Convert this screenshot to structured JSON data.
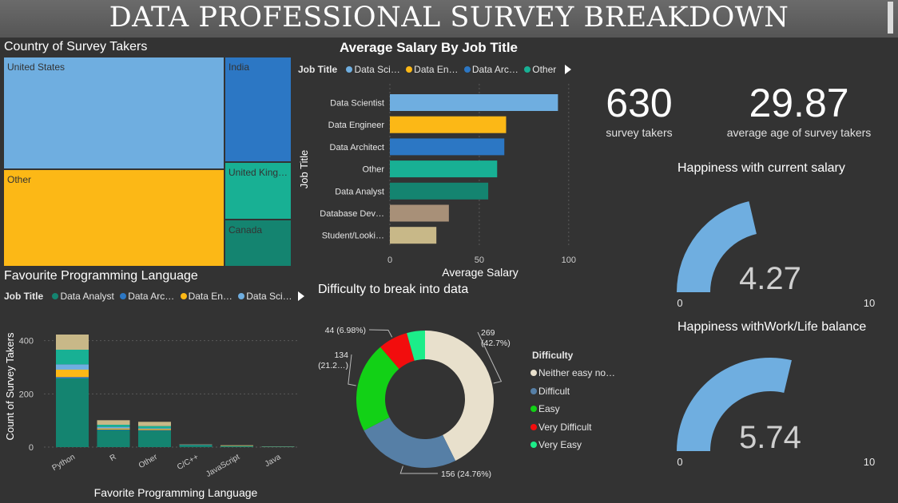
{
  "header": {
    "title": "DATA PROFESSIONAL SURVEY BREAKDOWN"
  },
  "treemap": {
    "title": "Country of Survey Takers",
    "items": [
      {
        "label": "United States",
        "color": "#6FAEE0"
      },
      {
        "label": "India",
        "color": "#2C77C4"
      },
      {
        "label": "United King…",
        "color": "#18B094"
      },
      {
        "label": "Other",
        "color": "#FCB816"
      },
      {
        "label": "Canada",
        "color": "#148470"
      }
    ]
  },
  "salary": {
    "title": "Average Salary By Job Title",
    "legend_title": "Job Title",
    "legend": [
      {
        "label": "Data Sci…",
        "color": "#6FAEE0"
      },
      {
        "label": "Data En…",
        "color": "#FCB816"
      },
      {
        "label": "Data Arc…",
        "color": "#2C77C4"
      },
      {
        "label": "Other",
        "color": "#18B094"
      }
    ],
    "ylabel": "Job Title",
    "xlabel": "Average Salary"
  },
  "kpis": [
    {
      "value": "630",
      "label": "survey takers"
    },
    {
      "value": "29.87",
      "label": "average age of survey takers"
    }
  ],
  "gauges": [
    {
      "title": "Happiness with current salary",
      "value": 4.27,
      "display": "4.27",
      "min": "0",
      "max": "10",
      "color": "#6FAEE0"
    },
    {
      "title": "Happiness withWork/Life balance",
      "value": 5.74,
      "display": "5.74",
      "min": "0",
      "max": "10",
      "color": "#6FAEE0"
    }
  ],
  "languages": {
    "title": "Favourite Programming Language",
    "legend_title": "Job Title",
    "legend": [
      {
        "label": "Data Analyst",
        "color": "#148470"
      },
      {
        "label": "Data Arc…",
        "color": "#2C77C4"
      },
      {
        "label": "Data En…",
        "color": "#FCB816"
      },
      {
        "label": "Data Sci…",
        "color": "#6FAEE0"
      }
    ]
  },
  "donut": {
    "title": "Difficulty to break into data",
    "legend_title": "Difficulty",
    "legend": [
      {
        "label": "Neither easy no…",
        "color": "#E8E0CC"
      },
      {
        "label": "Difficult",
        "color": "#567FA6"
      },
      {
        "label": "Easy",
        "color": "#12D116"
      },
      {
        "label": "Very Difficult",
        "color": "#F20D0D"
      },
      {
        "label": "Very Easy",
        "color": "#1CED89"
      }
    ]
  },
  "chart_data": [
    {
      "type": "bar",
      "orientation": "horizontal",
      "title": "Average Salary By Job Title",
      "xlabel": "Average Salary",
      "ylabel": "Job Title",
      "categories": [
        "Data Scientist",
        "Data Engineer",
        "Data Architect",
        "Other",
        "Data Analyst",
        "Database Dev…",
        "Student/Looki…"
      ],
      "values": [
        94,
        65,
        64,
        60,
        55,
        33,
        26
      ],
      "colors": [
        "#6FAEE0",
        "#FCB816",
        "#2C77C4",
        "#18B094",
        "#148470",
        "#A89078",
        "#C8B888"
      ],
      "xlim": [
        0,
        105
      ],
      "xticks": [
        "0",
        "50",
        "100"
      ],
      "grid": true
    },
    {
      "type": "bar",
      "stacked": true,
      "title": "Favourite Programming Language",
      "xlabel": "Favorite Programming Language",
      "ylabel": "Count of Survey Takers",
      "categories": [
        "Python",
        "R",
        "Other",
        "C/C++",
        "JavaScript",
        "Java"
      ],
      "ylim": [
        0,
        450
      ],
      "yticks": [
        "0",
        "200",
        "400"
      ],
      "series": [
        {
          "name": "Data Analyst",
          "color": "#148470",
          "values": [
            258,
            64,
            62,
            7,
            3,
            2
          ]
        },
        {
          "name": "Data Architect",
          "color": "#2C77C4",
          "values": [
            5,
            2,
            2,
            0,
            0,
            0
          ]
        },
        {
          "name": "Data Engineer",
          "color": "#FCB816",
          "values": [
            28,
            4,
            4,
            0,
            1,
            0
          ]
        },
        {
          "name": "Data Scientist",
          "color": "#6FAEE0",
          "values": [
            20,
            6,
            3,
            1,
            0,
            0
          ]
        },
        {
          "name": "Other",
          "color": "#18B094",
          "values": [
            55,
            8,
            8,
            1,
            1,
            0
          ]
        },
        {
          "name": "Student/Looking",
          "color": "#C8B888",
          "values": [
            57,
            17,
            16,
            1,
            2,
            1
          ]
        }
      ],
      "grid": true
    },
    {
      "type": "pie",
      "subtype": "donut",
      "title": "Difficulty to break into data",
      "categories": [
        "Neither easy nor difficult",
        "Difficult",
        "Easy",
        "Very Difficult",
        "Very Easy"
      ],
      "values": [
        269,
        156,
        134,
        44,
        27
      ],
      "percent": [
        42.7,
        24.76,
        21.27,
        6.98,
        4.29
      ],
      "colors": [
        "#E8E0CC",
        "#567FA6",
        "#12D116",
        "#F20D0D",
        "#1CED89"
      ],
      "data_labels": [
        {
          "index": 0,
          "lines": [
            "269",
            "(42.7%)"
          ]
        },
        {
          "index": 1,
          "lines": [
            "156 (24.76%)"
          ]
        },
        {
          "index": 2,
          "lines": [
            "134",
            "(21.2…)"
          ]
        },
        {
          "index": 3,
          "lines": [
            "44 (6.98%)"
          ]
        }
      ]
    }
  ]
}
